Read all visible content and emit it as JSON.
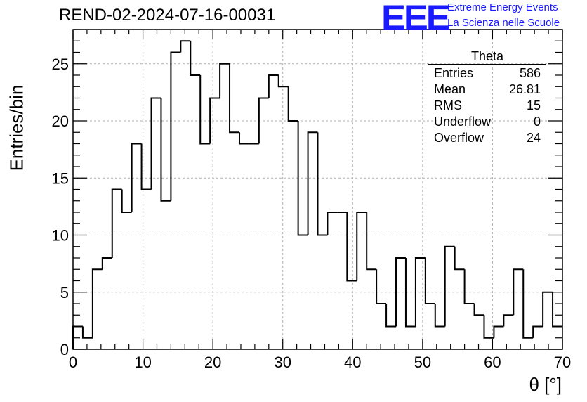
{
  "header": {
    "title": "REND-02-2024-07-16-00031",
    "logo_text": "EEE",
    "org_line1": "Extreme Energy Events",
    "org_line2": "La Scienza nelle Scuole",
    "logo_color": "#1a1aff"
  },
  "stats": {
    "title": "Theta",
    "rows": [
      {
        "label": "Entries",
        "value": "586"
      },
      {
        "label": "Mean",
        "value": "26.81"
      },
      {
        "label": "RMS",
        "value": "15"
      },
      {
        "label": "Underflow",
        "value": "0"
      },
      {
        "label": "Overflow",
        "value": "24"
      }
    ]
  },
  "chart_data": {
    "type": "bar",
    "style": "step-histogram",
    "title": "REND-02-2024-07-16-00031",
    "xlabel": "θ [°]",
    "ylabel": "Entries/bin",
    "xlim": [
      0,
      70
    ],
    "ylim": [
      0,
      28
    ],
    "xticks": [
      0,
      10,
      20,
      30,
      40,
      50,
      60,
      70
    ],
    "yticks": [
      0,
      5,
      10,
      15,
      20,
      25
    ],
    "grid": true,
    "bin_width": 1.4,
    "values": [
      2,
      1,
      7,
      8,
      14,
      12,
      18,
      14,
      22,
      13,
      26,
      27,
      24,
      18,
      22,
      25,
      19,
      18,
      18,
      22,
      24,
      23,
      20,
      10,
      19,
      10,
      12,
      12,
      6,
      12,
      7,
      4,
      2,
      8,
      2,
      8,
      4,
      2,
      9,
      7,
      4,
      3,
      1,
      2,
      3,
      7,
      1,
      2,
      5,
      2
    ]
  }
}
